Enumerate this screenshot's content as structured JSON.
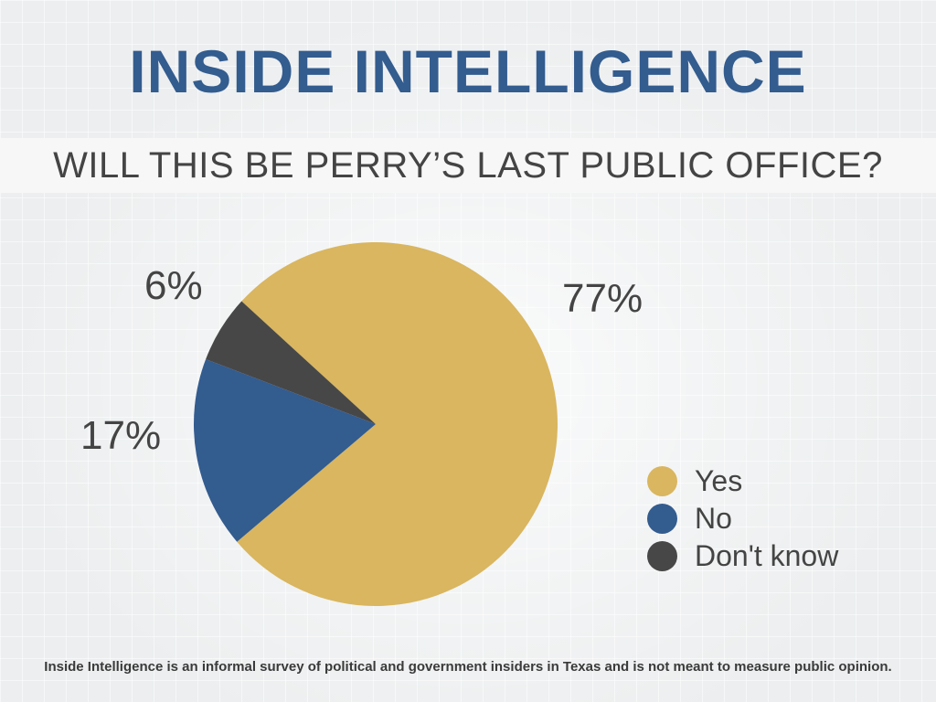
{
  "header": {
    "title": "INSIDE INTELLIGENCE",
    "title_color": "#335c8f"
  },
  "question": "WILL THIS BE PERRY’S LAST PUBLIC OFFICE?",
  "chart_data": {
    "type": "pie",
    "title": "WILL THIS BE PERRY’S LAST PUBLIC OFFICE?",
    "categories": [
      "Yes",
      "No",
      "Don't know"
    ],
    "values": [
      77,
      17,
      6
    ],
    "labels": [
      "77%",
      "17%",
      "6%"
    ],
    "colors": [
      "#d9b65f",
      "#335c8f",
      "#474747"
    ],
    "legend_placement": "bottom-right"
  },
  "legend": {
    "items": [
      {
        "label": "Yes",
        "color": "#d9b65f"
      },
      {
        "label": "No",
        "color": "#335c8f"
      },
      {
        "label": "Don't know",
        "color": "#474747"
      }
    ]
  },
  "footnote": "Inside Intelligence is an informal survey of political and government insiders in Texas and is not meant to measure public opinion."
}
